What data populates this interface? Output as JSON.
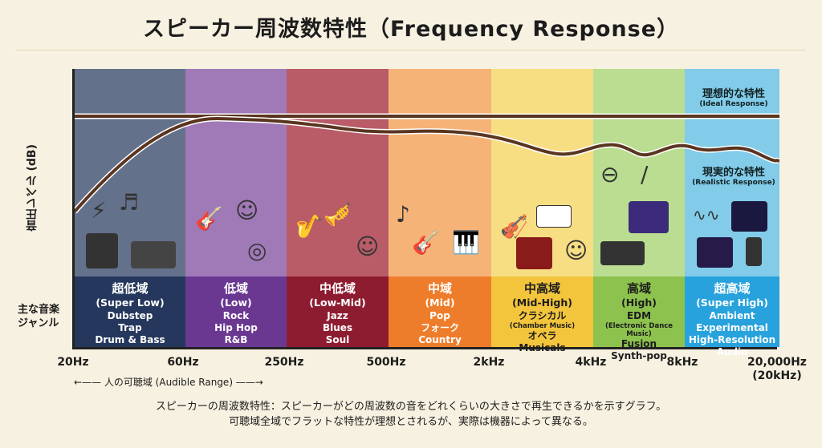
{
  "title": "スピーカー周波数特性（Frequency Response）",
  "y_axis_label": "音圧レベル (dB)",
  "genre_label": [
    "主な音楽",
    "ジャンル"
  ],
  "ideal": {
    "jp": "理想的な特性",
    "en": "(Ideal Response)"
  },
  "realistic": {
    "jp": "現実的な特性",
    "en": "(Realistic Response)"
  },
  "bands": [
    {
      "jp": "超低域",
      "en": "(Super Low)",
      "genres": [
        "Dubstep",
        "Trap",
        "Drum & Bass"
      ],
      "color": "#25375c",
      "up": "#3b4d72"
    },
    {
      "jp": "低域",
      "en": "(Low)",
      "genres": [
        "Rock",
        "Hip Hop",
        "R&B"
      ],
      "color": "#6a3891",
      "up": "#8857ab"
    },
    {
      "jp": "中低域",
      "en": "(Low-Mid)",
      "genres": [
        "Jazz",
        "Blues",
        "Soul"
      ],
      "color": "#8e1c30",
      "up": "#a83245"
    },
    {
      "jp": "中域",
      "en": "(Mid)",
      "genres": [
        "Pop",
        "フォーク",
        "Country"
      ],
      "color": "#ee7d2b",
      "up": "#f6a15a"
    },
    {
      "jp": "中高域",
      "en": "(Mid-High)",
      "genres": [
        "クラシカル",
        "(Chamber Music)",
        "オペラ",
        "Musicals"
      ],
      "color": "#f3c53c",
      "up": "#f8d867"
    },
    {
      "jp": "高域",
      "en": "(High)",
      "genres": [
        "EDM",
        "(Electronic Dance Music)",
        "Fusion",
        "Synth-pop"
      ],
      "color": "#8cc24d",
      "up": "#a9d77a"
    },
    {
      "jp": "超高域",
      "en": "(Super High)",
      "genres": [
        "Ambient",
        "Experimental",
        "High-Resolution Audio"
      ],
      "color": "#27a2dc",
      "up": "#62c0ea"
    }
  ],
  "ticks": [
    "20Hz",
    "60Hz",
    "250Hz",
    "500Hz",
    "2kHz",
    "4kHz",
    "8kHz",
    "20,000Hz",
    "(20kHz)"
  ],
  "audible_range": "←—— 人の可聴域 (Audible Range) ——→",
  "note": [
    "スピーカーの周波数特性：スピーカーがどの周波数の音をどれくらいの大きさで再生できるかを示すグラフ。",
    "可聴域全域でフラットな特性が理想とされるが、実際は機器によって異なる。"
  ]
}
